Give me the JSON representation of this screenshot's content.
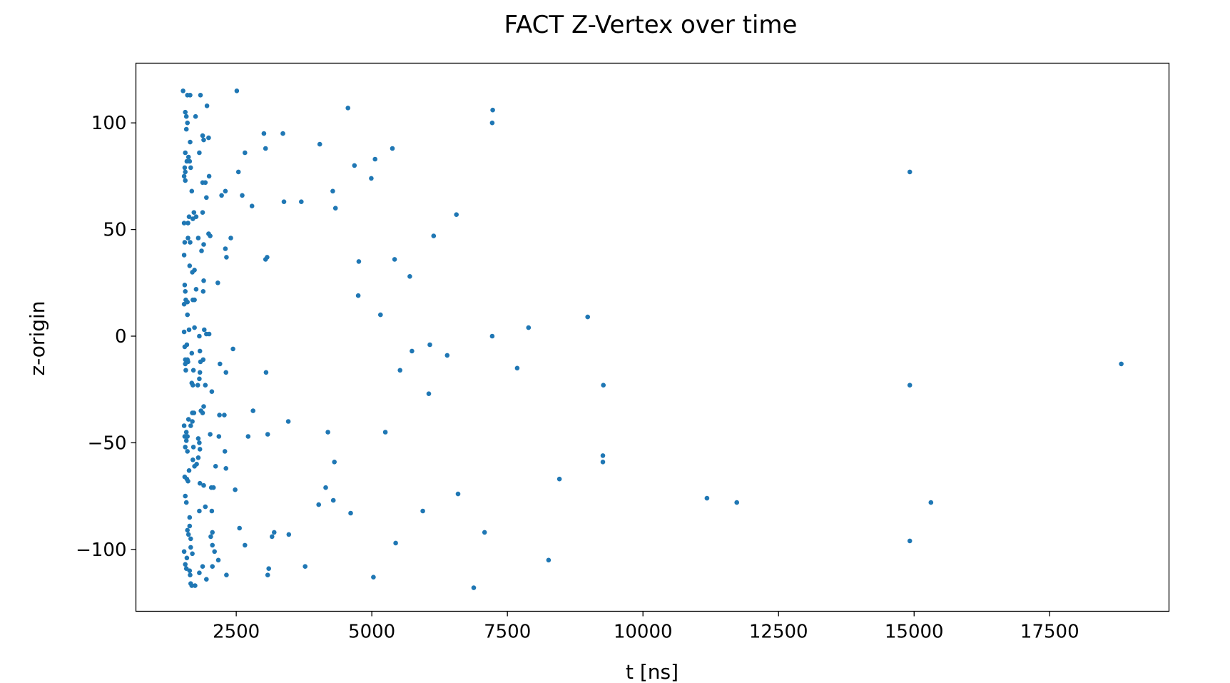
{
  "chart_data": {
    "type": "scatter",
    "title": "FACT Z-Vertex over time",
    "xlabel": "t [ns]",
    "ylabel": "z-origin",
    "xlim": [
      650,
      19700
    ],
    "ylim": [
      -129,
      128
    ],
    "x_ticks": [
      2500,
      5000,
      7500,
      10000,
      12500,
      15000,
      17500
    ],
    "y_ticks": [
      -100,
      -50,
      0,
      50,
      100
    ],
    "x_tick_labels": [
      "2500",
      "5000",
      "7500",
      "10000",
      "12500",
      "15000",
      "17500"
    ],
    "y_tick_labels": [
      "−100",
      "−50",
      "0",
      "50",
      "100"
    ],
    "grid": false,
    "marker_color": "#1f77b4",
    "points": [
      [
        1520,
        115
      ],
      [
        1600,
        113
      ],
      [
        1650,
        113
      ],
      [
        1840,
        113
      ],
      [
        1960,
        108
      ],
      [
        1560,
        105
      ],
      [
        1580,
        103
      ],
      [
        1750,
        103
      ],
      [
        1600,
        100
      ],
      [
        1580,
        97
      ],
      [
        1880,
        94
      ],
      [
        1990,
        93
      ],
      [
        1900,
        92
      ],
      [
        1650,
        91
      ],
      [
        1820,
        86
      ],
      [
        1560,
        86
      ],
      [
        1620,
        84
      ],
      [
        1590,
        82
      ],
      [
        1640,
        82
      ],
      [
        1550,
        79
      ],
      [
        1660,
        79
      ],
      [
        1560,
        77
      ],
      [
        1540,
        75
      ],
      [
        2000,
        75
      ],
      [
        1560,
        73
      ],
      [
        1880,
        72
      ],
      [
        1930,
        72
      ],
      [
        1680,
        68
      ],
      [
        1950,
        65
      ],
      [
        1720,
        58
      ],
      [
        1880,
        58
      ],
      [
        1630,
        56
      ],
      [
        1760,
        56
      ],
      [
        1700,
        55
      ],
      [
        1610,
        53
      ],
      [
        1540,
        53
      ],
      [
        1990,
        48
      ],
      [
        2020,
        47
      ],
      [
        1800,
        46
      ],
      [
        1610,
        46
      ],
      [
        1550,
        44
      ],
      [
        1650,
        44
      ],
      [
        1900,
        43
      ],
      [
        1860,
        40
      ],
      [
        1540,
        38
      ],
      [
        1640,
        33
      ],
      [
        1730,
        31
      ],
      [
        1690,
        30
      ],
      [
        1900,
        26
      ],
      [
        1550,
        24
      ],
      [
        1760,
        22
      ],
      [
        1890,
        21
      ],
      [
        1560,
        21
      ],
      [
        1570,
        17
      ],
      [
        1600,
        16
      ],
      [
        1540,
        15
      ],
      [
        1700,
        17
      ],
      [
        1730,
        17
      ],
      [
        1600,
        10
      ],
      [
        1910,
        3
      ],
      [
        1730,
        4
      ],
      [
        1630,
        3
      ],
      [
        1540,
        2
      ],
      [
        1950,
        1
      ],
      [
        2000,
        1
      ],
      [
        1820,
        0
      ],
      [
        1590,
        -4
      ],
      [
        1550,
        -5
      ],
      [
        1830,
        -7
      ],
      [
        1680,
        -8
      ],
      [
        1560,
        -11
      ],
      [
        1600,
        -11
      ],
      [
        1890,
        -11
      ],
      [
        1610,
        -12
      ],
      [
        1560,
        -13
      ],
      [
        1840,
        -12
      ],
      [
        1570,
        -16
      ],
      [
        1710,
        -16
      ],
      [
        1830,
        -17
      ],
      [
        1820,
        -20
      ],
      [
        1680,
        -22
      ],
      [
        1700,
        -23
      ],
      [
        1790,
        -23
      ],
      [
        1930,
        -23
      ],
      [
        2050,
        -26
      ],
      [
        1900,
        -33
      ],
      [
        1690,
        -36
      ],
      [
        1720,
        -36
      ],
      [
        1880,
        -36
      ],
      [
        1850,
        -35
      ],
      [
        1620,
        -39
      ],
      [
        1690,
        -40
      ],
      [
        1660,
        -42
      ],
      [
        1540,
        -42
      ],
      [
        1580,
        -45
      ],
      [
        1550,
        -47
      ],
      [
        1600,
        -47
      ],
      [
        1580,
        -49
      ],
      [
        1800,
        -48
      ],
      [
        1820,
        -50
      ],
      [
        1560,
        -52
      ],
      [
        1710,
        -52
      ],
      [
        1600,
        -54
      ],
      [
        1830,
        -53
      ],
      [
        1800,
        -57
      ],
      [
        1700,
        -58
      ],
      [
        1770,
        -60
      ],
      [
        1730,
        -61
      ],
      [
        1630,
        -63
      ],
      [
        1550,
        -66
      ],
      [
        1590,
        -67
      ],
      [
        1610,
        -68
      ],
      [
        1830,
        -69
      ],
      [
        1900,
        -70
      ],
      [
        1560,
        -75
      ],
      [
        1580,
        -78
      ],
      [
        1930,
        -80
      ],
      [
        1820,
        -82
      ],
      [
        1640,
        -85
      ],
      [
        1640,
        -89
      ],
      [
        1600,
        -91
      ],
      [
        1620,
        -93
      ],
      [
        1660,
        -95
      ],
      [
        1540,
        -101
      ],
      [
        1660,
        -99
      ],
      [
        1690,
        -102
      ],
      [
        1590,
        -104
      ],
      [
        1560,
        -107
      ],
      [
        1640,
        -110
      ],
      [
        1580,
        -109
      ],
      [
        1650,
        -112
      ],
      [
        1820,
        -111
      ],
      [
        1950,
        -114
      ],
      [
        1660,
        -116
      ],
      [
        1680,
        -117
      ],
      [
        1740,
        -117
      ],
      [
        1880,
        -108
      ],
      [
        2510,
        115
      ],
      [
        2300,
        68
      ],
      [
        2230,
        66
      ],
      [
        2160,
        25
      ],
      [
        2200,
        -13
      ],
      [
        2310,
        -17
      ],
      [
        2440,
        -6
      ],
      [
        2190,
        -37
      ],
      [
        2280,
        -37
      ],
      [
        2400,
        46
      ],
      [
        2300,
        41
      ],
      [
        2320,
        37
      ],
      [
        2540,
        77
      ],
      [
        2610,
        66
      ],
      [
        2660,
        86
      ],
      [
        2790,
        61
      ],
      [
        2180,
        -47
      ],
      [
        2290,
        -54
      ],
      [
        2310,
        -62
      ],
      [
        2120,
        -61
      ],
      [
        2080,
        -71
      ],
      [
        2040,
        -71
      ],
      [
        2480,
        -72
      ],
      [
        2050,
        -82
      ],
      [
        2560,
        -90
      ],
      [
        2060,
        -92
      ],
      [
        2030,
        -94
      ],
      [
        2060,
        -98
      ],
      [
        2100,
        -101
      ],
      [
        2170,
        -105
      ],
      [
        2060,
        -108
      ],
      [
        2320,
        -112
      ],
      [
        2660,
        -98
      ],
      [
        2720,
        -47
      ],
      [
        2810,
        -35
      ],
      [
        2020,
        -46
      ],
      [
        3010,
        95
      ],
      [
        3040,
        88
      ],
      [
        3360,
        95
      ],
      [
        3380,
        63
      ],
      [
        3700,
        63
      ],
      [
        3040,
        36
      ],
      [
        3070,
        37
      ],
      [
        3050,
        -17
      ],
      [
        3080,
        -46
      ],
      [
        3460,
        -40
      ],
      [
        3200,
        -92
      ],
      [
        3160,
        -94
      ],
      [
        3470,
        -93
      ],
      [
        3100,
        -109
      ],
      [
        3080,
        -112
      ],
      [
        3770,
        -108
      ],
      [
        4040,
        90
      ],
      [
        4560,
        107
      ],
      [
        4280,
        68
      ],
      [
        4330,
        60
      ],
      [
        4680,
        80
      ],
      [
        4990,
        74
      ],
      [
        5060,
        83
      ],
      [
        5380,
        88
      ],
      [
        4760,
        35
      ],
      [
        5420,
        36
      ],
      [
        4750,
        19
      ],
      [
        5160,
        10
      ],
      [
        5700,
        28
      ],
      [
        4190,
        -45
      ],
      [
        5250,
        -45
      ],
      [
        4310,
        -59
      ],
      [
        4150,
        -71
      ],
      [
        4290,
        -77
      ],
      [
        4020,
        -79
      ],
      [
        4610,
        -83
      ],
      [
        5030,
        -113
      ],
      [
        5440,
        -97
      ],
      [
        5520,
        -16
      ],
      [
        5740,
        -7
      ],
      [
        6070,
        -4
      ],
      [
        6390,
        -9
      ],
      [
        6050,
        -27
      ],
      [
        6140,
        47
      ],
      [
        6560,
        57
      ],
      [
        7230,
        106
      ],
      [
        7220,
        100
      ],
      [
        7220,
        0
      ],
      [
        7890,
        4
      ],
      [
        7680,
        -15
      ],
      [
        6590,
        -74
      ],
      [
        5940,
        -82
      ],
      [
        7080,
        -92
      ],
      [
        6880,
        -118
      ],
      [
        8460,
        -67
      ],
      [
        8260,
        -105
      ],
      [
        8980,
        9
      ],
      [
        9270,
        -23
      ],
      [
        9260,
        -56
      ],
      [
        9260,
        -59
      ],
      [
        11180,
        -76
      ],
      [
        11730,
        -78
      ],
      [
        14920,
        77
      ],
      [
        14920,
        -23
      ],
      [
        15310,
        -78
      ],
      [
        14920,
        -96
      ],
      [
        18820,
        -13
      ]
    ]
  }
}
